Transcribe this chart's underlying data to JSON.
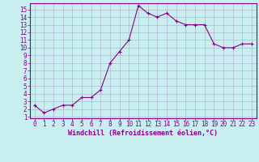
{
  "x": [
    0,
    1,
    2,
    3,
    4,
    5,
    6,
    7,
    8,
    9,
    10,
    11,
    12,
    13,
    14,
    15,
    16,
    17,
    18,
    19,
    20,
    21,
    22,
    23
  ],
  "y": [
    2.5,
    1.5,
    2.0,
    2.5,
    2.5,
    3.5,
    3.5,
    4.5,
    8.0,
    9.5,
    11.0,
    15.5,
    14.5,
    14.0,
    14.5,
    13.5,
    13.0,
    13.0,
    13.0,
    10.5,
    10.0,
    10.0,
    10.5,
    10.5
  ],
  "xlim_min": -0.5,
  "xlim_max": 23.5,
  "ylim_min": 0.8,
  "ylim_max": 15.8,
  "yticks": [
    1,
    2,
    3,
    4,
    5,
    6,
    7,
    8,
    9,
    10,
    11,
    12,
    13,
    14,
    15
  ],
  "xticks": [
    0,
    1,
    2,
    3,
    4,
    5,
    6,
    7,
    8,
    9,
    10,
    11,
    12,
    13,
    14,
    15,
    16,
    17,
    18,
    19,
    20,
    21,
    22,
    23
  ],
  "xlabel": "Windchill (Refroidissement éolien,°C)",
  "line_color": "#880088",
  "marker": "+",
  "background_color": "#c8eef0",
  "grid_color": "#aaaacc",
  "tick_color": "#880088",
  "label_color": "#880088",
  "spine_color": "#880088",
  "tick_labelsize": 5.5,
  "xlabel_fontsize": 6.0
}
